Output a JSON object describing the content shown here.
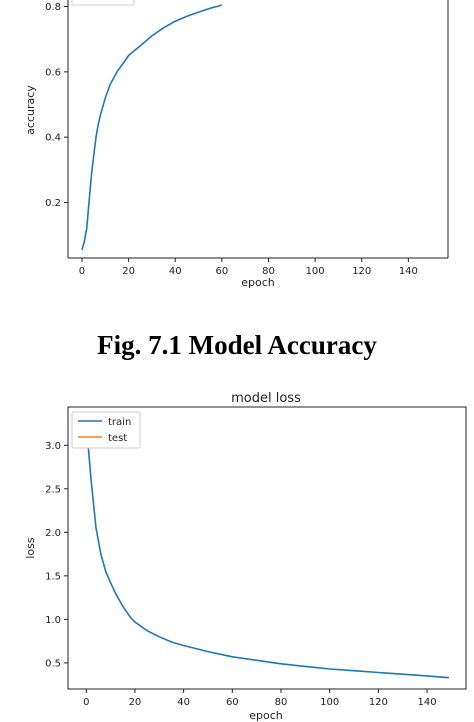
{
  "caption": "Fig. 7.1 Model Accuracy",
  "chart_data": [
    {
      "type": "line",
      "title": "",
      "xlabel": "epoch",
      "ylabel": "accuracy",
      "xlim": [
        -6,
        157
      ],
      "ylim": [
        0.03,
        0.82
      ],
      "xticks": [
        0,
        20,
        40,
        60,
        80,
        100,
        120,
        140
      ],
      "yticks": [
        0.2,
        0.4,
        0.6,
        0.8
      ],
      "tick_labels_y": [
        "0.2",
        "0.4",
        "0.6",
        "0.8"
      ],
      "legend": "top-left",
      "colors": {
        "train": "#1f77b4",
        "test": "#ff7f0e"
      },
      "series": [
        {
          "x": [
            0,
            1,
            2,
            3,
            4,
            5,
            6,
            7,
            8,
            10,
            12,
            15,
            18,
            20,
            25,
            30,
            35,
            40,
            45,
            50,
            55,
            58,
            60
          ],
          "values": [
            0.055,
            0.08,
            0.12,
            0.2,
            0.28,
            0.34,
            0.4,
            0.44,
            0.47,
            0.52,
            0.56,
            0.6,
            0.63,
            0.65,
            0.68,
            0.71,
            0.735,
            0.755,
            0.77,
            0.783,
            0.795,
            0.8,
            0.805
          ]
        }
      ]
    },
    {
      "type": "line",
      "title": "model loss",
      "xlabel": "epoch",
      "ylabel": "loss",
      "xlim": [
        -7.5,
        156
      ],
      "ylim": [
        0.2,
        3.44
      ],
      "xticks": [
        0,
        20,
        40,
        60,
        80,
        100,
        120,
        140
      ],
      "yticks": [
        0.5,
        1.0,
        1.5,
        2.0,
        2.5,
        3.0
      ],
      "tick_labels_y": [
        "0.5",
        "1.0",
        "1.5",
        "2.0",
        "2.5",
        "3.0"
      ],
      "legend": "top-left",
      "colors": {
        "train": "#1f77b4",
        "test": "#ff7f0e"
      },
      "series": [
        {
          "name": "train",
          "x": [
            0,
            2,
            4,
            6,
            8,
            10,
            12,
            15,
            18,
            20,
            25,
            30,
            35,
            40,
            50,
            60,
            70,
            80,
            90,
            100,
            110,
            120,
            130,
            140,
            149
          ],
          "values": [
            3.25,
            2.6,
            2.05,
            1.75,
            1.55,
            1.42,
            1.3,
            1.15,
            1.03,
            0.97,
            0.87,
            0.8,
            0.74,
            0.7,
            0.63,
            0.57,
            0.53,
            0.49,
            0.46,
            0.43,
            0.41,
            0.39,
            0.37,
            0.35,
            0.33
          ]
        },
        {
          "name": "test",
          "x": [],
          "values": []
        }
      ]
    }
  ]
}
